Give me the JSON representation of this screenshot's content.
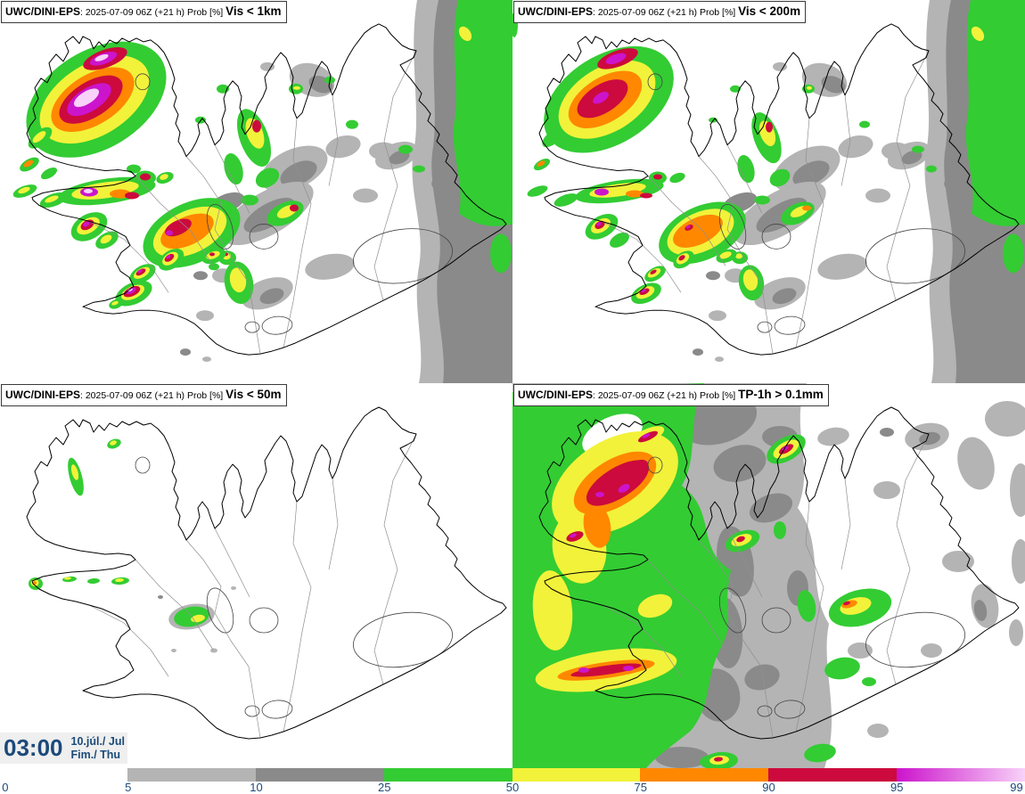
{
  "panels": [
    {
      "model": "UWC/DINI-EPS",
      "run": ": 2025-07-09 06Z (+21 h) Prob [%] ",
      "variable": "Vis < 1km"
    },
    {
      "model": "UWC/DINI-EPS",
      "run": ": 2025-07-09 06Z (+21 h) Prob [%] ",
      "variable": "Vis < 200m"
    },
    {
      "model": "UWC/DINI-EPS",
      "run": ": 2025-07-09 06Z (+21 h) Prob [%] ",
      "variable": "Vis < 50m"
    },
    {
      "model": "UWC/DINI-EPS",
      "run": ": 2025-07-09 06Z (+21 h) Prob [%] ",
      "variable": "TP-1h > 0.1mm"
    }
  ],
  "time_block": {
    "time": "03:00",
    "date_line1": "10.júl./ Jul",
    "date_line2": "Fim./ Thu"
  },
  "colorbar": {
    "unit": "Prob [%]",
    "ticks": [
      {
        "label": "0",
        "x_pct": 0.2
      },
      {
        "label": "5",
        "x_pct": 12.5
      },
      {
        "label": "10",
        "x_pct": 25
      },
      {
        "label": "25",
        "x_pct": 37.5
      },
      {
        "label": "50",
        "x_pct": 50
      },
      {
        "label": "75",
        "x_pct": 62.5
      },
      {
        "label": "90",
        "x_pct": 75
      },
      {
        "label": "95",
        "x_pct": 87.5
      },
      {
        "label": "99",
        "x_pct": 99.8
      }
    ],
    "segments": [
      {
        "from": "5",
        "to": "10",
        "color": "#b4b4b4"
      },
      {
        "from": "10",
        "to": "25",
        "color": "#8a8a8a"
      },
      {
        "from": "25",
        "to": "50",
        "color": "#33cc33"
      },
      {
        "from": "50",
        "to": "75",
        "color": "#f2f23a"
      },
      {
        "from": "75",
        "to": "90",
        "color": "#ff8800"
      },
      {
        "from": "90",
        "to": "95",
        "color": "#cc0a3d"
      },
      {
        "from": "95",
        "to": "99",
        "color_start": "#cc14cc",
        "color_end": "#f8d2f8"
      }
    ]
  },
  "palette": {
    "prob_5_10": "#b4b4b4",
    "prob_10_25": "#8a8a8a",
    "prob_25_50": "#33cc33",
    "prob_50_75": "#f2f23a",
    "prob_75_90": "#ff8800",
    "prob_90_95": "#cc0a3d",
    "prob_95_99_start": "#cc14cc",
    "prob_95_99_end": "#f8d2f8",
    "label_navy": "#1b4a7a",
    "time_box_bg": "#efefef",
    "coast_line": "#000000",
    "inner_line": "#909090"
  }
}
